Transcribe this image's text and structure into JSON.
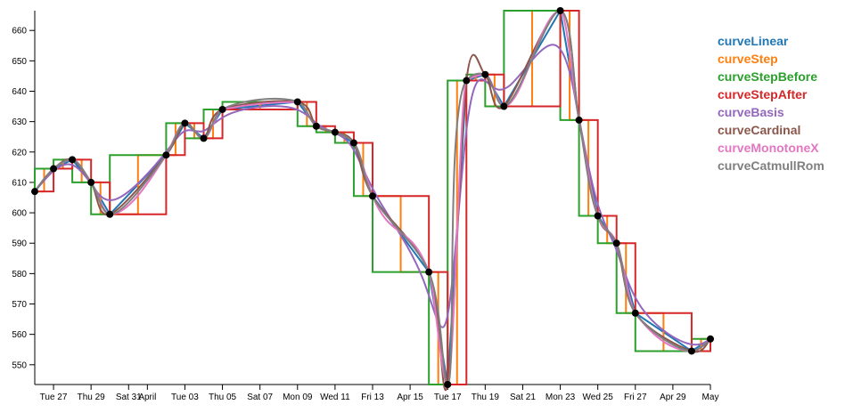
{
  "chart_data": {
    "type": "line",
    "x": [
      "03-26",
      "03-27",
      "03-28",
      "03-29",
      "03-30",
      "04-02",
      "04-03",
      "04-04",
      "04-05",
      "04-09",
      "04-10",
      "04-11",
      "04-12",
      "04-13",
      "04-16",
      "04-17",
      "04-18",
      "04-19",
      "04-20",
      "04-23",
      "04-24",
      "04-25",
      "04-26",
      "04-27",
      "04-30",
      "05-01"
    ],
    "values": [
      607,
      614.5,
      617.5,
      610,
      599.5,
      619,
      629.5,
      624.5,
      634,
      636.5,
      628.5,
      626.5,
      623,
      605.5,
      580.5,
      543.5,
      643.5,
      645.5,
      635,
      666.5,
      630.5,
      599,
      590,
      567,
      554.5,
      558.5
    ],
    "series": [
      {
        "name": "curveLinear",
        "color": "#1f77b4",
        "curve": "linear"
      },
      {
        "name": "curveStep",
        "color": "#ff7f0e",
        "curve": "step"
      },
      {
        "name": "curveStepBefore",
        "color": "#2ca02c",
        "curve": "stepBefore"
      },
      {
        "name": "curveStepAfter",
        "color": "#d62728",
        "curve": "stepAfter"
      },
      {
        "name": "curveBasis",
        "color": "#9467bd",
        "curve": "basis"
      },
      {
        "name": "curveCardinal",
        "color": "#8c564b",
        "curve": "cardinal"
      },
      {
        "name": "curveMonotoneX",
        "color": "#e377c2",
        "curve": "monotoneX"
      },
      {
        "name": "curveCatmullRom",
        "color": "#7f7f7f",
        "curve": "catmullRom"
      }
    ],
    "point_color": "#000000",
    "xlim": [
      "03-26",
      "05-01"
    ],
    "xticks": [
      {
        "value": "03-27",
        "label": "Tue 27"
      },
      {
        "value": "03-29",
        "label": "Thu 29"
      },
      {
        "value": "03-31",
        "label": "Sat 31"
      },
      {
        "value": "04-01",
        "label": "April"
      },
      {
        "value": "04-03",
        "label": "Tue 03"
      },
      {
        "value": "04-05",
        "label": "Thu 05"
      },
      {
        "value": "04-07",
        "label": "Sat 07"
      },
      {
        "value": "04-09",
        "label": "Mon 09"
      },
      {
        "value": "04-11",
        "label": "Wed 11"
      },
      {
        "value": "04-13",
        "label": "Fri 13"
      },
      {
        "value": "04-15",
        "label": "Apr 15"
      },
      {
        "value": "04-17",
        "label": "Tue 17"
      },
      {
        "value": "04-19",
        "label": "Thu 19"
      },
      {
        "value": "04-21",
        "label": "Sat 21"
      },
      {
        "value": "04-23",
        "label": "Mon 23"
      },
      {
        "value": "04-25",
        "label": "Wed 25"
      },
      {
        "value": "04-27",
        "label": "Fri 27"
      },
      {
        "value": "04-29",
        "label": "Apr 29"
      },
      {
        "value": "05-01",
        "label": "May"
      }
    ],
    "ylim": [
      543.5,
      666.5
    ],
    "yticks": [
      550,
      560,
      570,
      580,
      590,
      600,
      610,
      620,
      630,
      640,
      650,
      660
    ]
  }
}
